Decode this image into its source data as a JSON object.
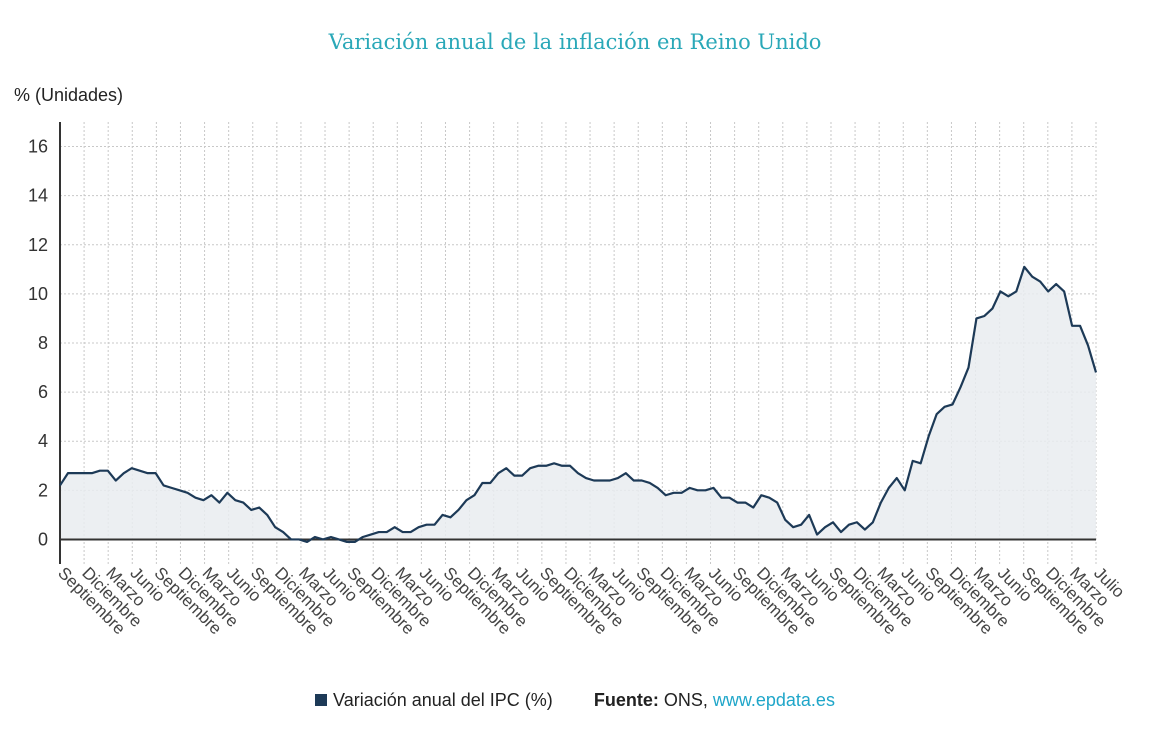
{
  "colors": {
    "title": "#2aa8b8",
    "series": "#1d3a57",
    "fill": "#e9ecf0",
    "grid": "#c8c8c8",
    "zero_line": "#333333",
    "site": "#1fa6c9"
  },
  "chart_data": {
    "type": "area",
    "title": "Variación anual de la inflación en Reino Unido",
    "ylabel": "% (Unidades)",
    "xlabel": "",
    "ylim": [
      -1,
      17
    ],
    "yticks": [
      0,
      2,
      4,
      6,
      8,
      10,
      12,
      14,
      16
    ],
    "grid": true,
    "legend_position": "bottom",
    "x_tick_labels": [
      "Septiembre",
      "Diciembre",
      "Marzo",
      "Junio",
      "Septiembre",
      "Diciembre",
      "Marzo",
      "Junio",
      "Septiembre",
      "Diciembre",
      "Marzo",
      "Junio",
      "Septiembre",
      "Diciembre",
      "Marzo",
      "Junio",
      "Septiembre",
      "Diciembre",
      "Marzo",
      "Junio",
      "Septiembre",
      "Diciembre",
      "Marzo",
      "Junio",
      "Septiembre",
      "Diciembre",
      "Marzo",
      "Junio",
      "Septiembre",
      "Diciembre",
      "Marzo",
      "Junio",
      "Septiembre",
      "Diciembre",
      "Marzo",
      "Junio",
      "Septiembre",
      "Diciembre",
      "Marzo",
      "Junio",
      "Septiembre",
      "Diciembre",
      "Marzo",
      "Julio"
    ],
    "series": [
      {
        "name": "Variación anual del IPC (%)",
        "values": [
          2.2,
          2.7,
          2.7,
          2.7,
          2.7,
          2.8,
          2.8,
          2.4,
          2.7,
          2.9,
          2.8,
          2.7,
          2.7,
          2.2,
          2.1,
          2.0,
          1.9,
          1.7,
          1.6,
          1.8,
          1.5,
          1.9,
          1.6,
          1.5,
          1.2,
          1.3,
          1.0,
          0.5,
          0.3,
          0.0,
          0.0,
          -0.1,
          0.1,
          0.0,
          0.1,
          0.0,
          -0.1,
          -0.1,
          0.1,
          0.2,
          0.3,
          0.3,
          0.5,
          0.3,
          0.3,
          0.5,
          0.6,
          0.6,
          1.0,
          0.9,
          1.2,
          1.6,
          1.8,
          2.3,
          2.3,
          2.7,
          2.9,
          2.6,
          2.6,
          2.9,
          3.0,
          3.0,
          3.1,
          3.0,
          3.0,
          2.7,
          2.5,
          2.4,
          2.4,
          2.4,
          2.5,
          2.7,
          2.4,
          2.4,
          2.3,
          2.1,
          1.8,
          1.9,
          1.9,
          2.1,
          2.0,
          2.0,
          2.1,
          1.7,
          1.7,
          1.5,
          1.5,
          1.3,
          1.8,
          1.7,
          1.5,
          0.8,
          0.5,
          0.6,
          1.0,
          0.2,
          0.5,
          0.7,
          0.3,
          0.6,
          0.7,
          0.4,
          0.7,
          1.5,
          2.1,
          2.5,
          2.0,
          3.2,
          3.1,
          4.2,
          5.1,
          5.4,
          5.5,
          6.2,
          7.0,
          9.0,
          9.1,
          9.4,
          10.1,
          9.9,
          10.1,
          11.1,
          10.7,
          10.5,
          10.1,
          10.4,
          10.1,
          8.7,
          8.7,
          7.9,
          6.8
        ]
      }
    ]
  },
  "legend": {
    "series_label": "Variación anual del IPC (%)",
    "source_label": "Fuente:",
    "source_value": "ONS,",
    "source_site": "www.epdata.es"
  }
}
